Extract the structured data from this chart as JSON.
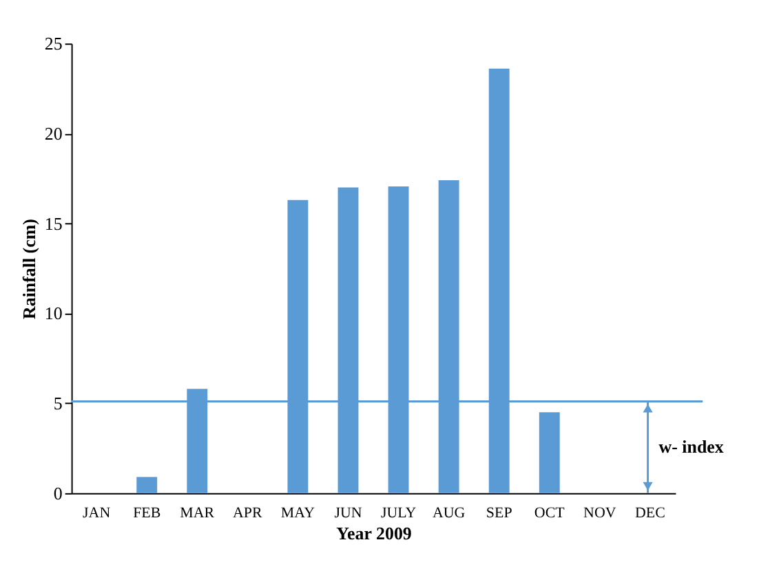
{
  "chart_data": {
    "type": "bar",
    "xlabel": "Year 2009",
    "ylabel": "Rainfall (cm)",
    "categories": [
      "JAN",
      "FEB",
      "MAR",
      "APR",
      "MAY",
      "JUN",
      "JULY",
      "AUG",
      "SEP",
      "OCT",
      "NOV",
      "DEC"
    ],
    "values": [
      0,
      0.9,
      5.8,
      0,
      16.3,
      17.0,
      17.05,
      17.4,
      23.6,
      4.5,
      0,
      0
    ],
    "color": "#5b9bd5",
    "ylim": [
      0,
      25
    ],
    "yticks": [
      0,
      5,
      10,
      15,
      20,
      25
    ],
    "grid": false,
    "ref_lines": [
      {
        "axis": "y",
        "value": 5.1,
        "label": "w- index",
        "color": "#5b9bd5"
      }
    ]
  }
}
